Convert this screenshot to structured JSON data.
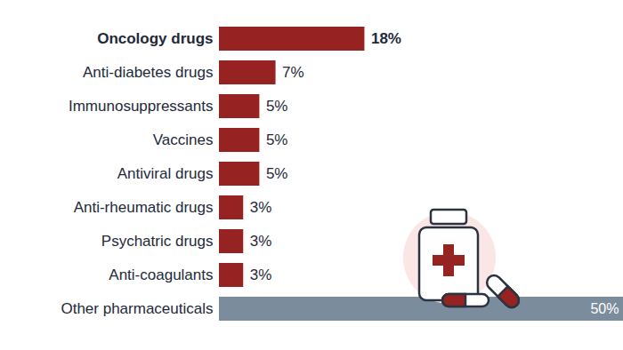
{
  "chart_data": {
    "type": "bar",
    "orientation": "horizontal",
    "categories": [
      "Oncology drugs",
      "Anti-diabetes drugs",
      "Immunosuppressants",
      "Vaccines",
      "Antiviral drugs",
      "Anti-rheumatic drugs",
      "Psychatric drugs",
      "Anti-coagulants",
      "Other pharmaceuticals"
    ],
    "values": [
      18,
      7,
      5,
      5,
      5,
      3,
      3,
      3,
      50
    ],
    "value_labels": [
      "18%",
      "7%",
      "5%",
      "5%",
      "5%",
      "3%",
      "3%",
      "3%",
      "50%"
    ],
    "colors": [
      "#962321",
      "#962321",
      "#962321",
      "#962321",
      "#962321",
      "#962321",
      "#962321",
      "#962321",
      "#7b8c9c"
    ],
    "xlim": [
      0,
      50
    ],
    "data_labels": true,
    "tick_labels": "y"
  }
}
